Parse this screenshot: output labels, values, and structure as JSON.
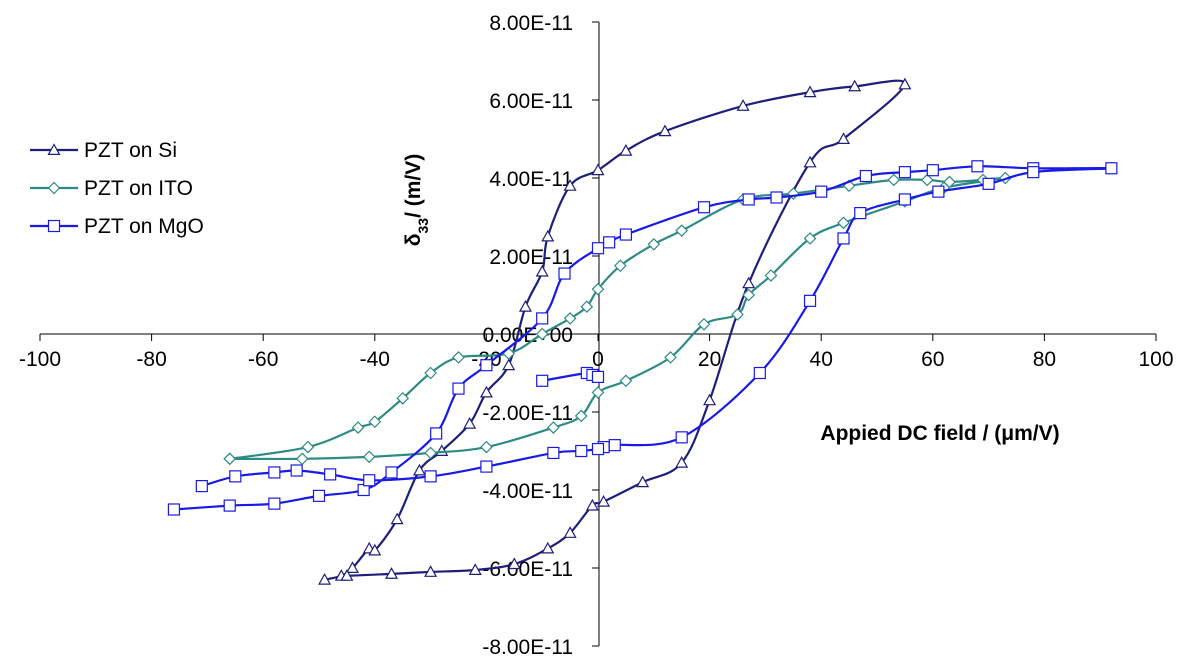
{
  "chart_data": {
    "type": "scatter",
    "title": "",
    "xlabel": "Appied DC field / (μm/V)",
    "ylabel": "δ",
    "ylabel_subscript": "33",
    "ylabel_suffix": "/ (m/V)",
    "xlim": [
      -100,
      100
    ],
    "ylim": [
      -8e-11,
      8e-11
    ],
    "x_ticks": [
      -100,
      -80,
      -60,
      -40,
      -20,
      0,
      20,
      40,
      60,
      80,
      100
    ],
    "x_tick_labels": [
      "-100",
      "-80",
      "-60",
      "-40",
      "-20",
      "0",
      "20",
      "40",
      "60",
      "80",
      "100"
    ],
    "y_ticks": [
      -8e-11,
      -6e-11,
      -4e-11,
      -2e-11,
      0,
      2e-11,
      4e-11,
      6e-11,
      8e-11
    ],
    "y_tick_labels": [
      "-8.00E-11",
      "-6.00E-11",
      "-4.00E-11",
      "-2.00E-11",
      "0.00E+00",
      "2.00E-11",
      "4.00E-11",
      "6.00E-11",
      "8.00E-11"
    ],
    "grid": false,
    "legend_position": "left",
    "series": [
      {
        "name": "PZT on Si",
        "color": "#1f1f7a",
        "marker": "triangle",
        "x": [
          -49,
          -46,
          -44,
          -41,
          -40,
          -36,
          -32,
          -28,
          -23,
          -20,
          -16,
          -13,
          -10,
          -9,
          -5,
          0,
          5,
          12,
          26,
          38,
          46,
          55,
          44,
          38,
          27,
          20,
          15,
          8,
          1,
          -1,
          -5,
          -9,
          -15,
          -22,
          -30,
          -37,
          -45
        ],
        "y": [
          -6.3e-11,
          -6.2e-11,
          -6e-11,
          -5.5e-11,
          -5.55e-11,
          -4.75e-11,
          -3.5e-11,
          -3e-11,
          -2.3e-11,
          -1.5e-11,
          -8e-12,
          7e-12,
          1.6e-11,
          2.5e-11,
          3.8e-11,
          4.2e-11,
          4.7e-11,
          5.2e-11,
          5.85e-11,
          6.2e-11,
          6.35e-11,
          6.4e-11,
          5e-11,
          4.4e-11,
          1.3e-11,
          -1.7e-11,
          -3.3e-11,
          -3.8e-11,
          -4.3e-11,
          -4.4e-11,
          -5.1e-11,
          -5.5e-11,
          -5.9e-11,
          -6.05e-11,
          -6.1e-11,
          -6.15e-11,
          -6.2e-11
        ]
      },
      {
        "name": "PZT on ITO",
        "color": "#2e8b84",
        "marker": "diamond",
        "x": [
          -66,
          -52,
          -43,
          -40,
          -35,
          -30,
          -25,
          -16,
          -10,
          -5,
          -2,
          0,
          4,
          10,
          15,
          26,
          35,
          45,
          53,
          59,
          63,
          69,
          73,
          62,
          55,
          44,
          38,
          31,
          27,
          25,
          19,
          13,
          5,
          0,
          -3,
          -8,
          -20,
          -30,
          -41,
          -53,
          -66
        ],
        "y": [
          -3.2e-11,
          -2.9e-11,
          -2.4e-11,
          -2.25e-11,
          -1.65e-11,
          -1e-11,
          -6e-12,
          -5e-12,
          0.0,
          4e-12,
          7e-12,
          1.15e-11,
          1.75e-11,
          2.3e-11,
          2.65e-11,
          3.45e-11,
          3.6e-11,
          3.8e-11,
          3.95e-11,
          3.95e-11,
          3.9e-11,
          3.95e-11,
          4e-11,
          3.75e-11,
          3.4e-11,
          2.85e-11,
          2.45e-11,
          1.5e-11,
          1e-11,
          5e-12,
          2.5e-12,
          -6e-12,
          -1.2e-11,
          -1.5e-11,
          -2.1e-11,
          -2.4e-11,
          -2.9e-11,
          -3.05e-11,
          -3.15e-11,
          -3.2e-11,
          -3.2e-11
        ]
      },
      {
        "name": "PZT on MgO",
        "color": "#1a1ae6",
        "marker": "square",
        "x": [
          -76,
          -66,
          -58,
          -50,
          -42,
          -37,
          -29,
          -25,
          -20,
          -10,
          -6,
          0,
          2,
          5,
          19,
          27,
          32,
          40,
          48,
          55,
          60,
          68,
          78,
          92,
          78,
          70,
          61,
          55,
          47,
          44,
          38,
          29,
          15,
          3,
          1,
          0,
          -3,
          -8,
          -20,
          -30,
          -41,
          -48,
          -54,
          -58,
          -65,
          -71
        ],
        "y": [
          -4.5e-11,
          -4.4e-11,
          -4.35e-11,
          -4.15e-11,
          -4e-11,
          -3.55e-11,
          -2.55e-11,
          -1.4e-11,
          -8e-12,
          4e-12,
          1.55e-11,
          2.2e-11,
          2.35e-11,
          2.55e-11,
          3.25e-11,
          3.45e-11,
          3.5e-11,
          3.65e-11,
          4.05e-11,
          4.15e-11,
          4.2e-11,
          4.3e-11,
          4.25e-11,
          4.25e-11,
          4.15e-11,
          3.85e-11,
          3.65e-11,
          3.45e-11,
          3.1e-11,
          2.45e-11,
          8.5e-12,
          -1e-11,
          -2.65e-11,
          -2.85e-11,
          -2.9e-11,
          -2.95e-11,
          -3e-11,
          -3.05e-11,
          -3.4e-11,
          -3.65e-11,
          -3.75e-11,
          -3.6e-11,
          -3.5e-11,
          -3.55e-11,
          -3.65e-11,
          -3.9e-11
        ]
      }
    ],
    "extra_curves": [
      {
        "series": "PZT on MgO",
        "x": [
          -10,
          -2,
          -1,
          0
        ],
        "y": [
          -1.2e-11,
          -1e-11,
          -1.05e-11,
          -1.1e-11
        ]
      }
    ]
  }
}
